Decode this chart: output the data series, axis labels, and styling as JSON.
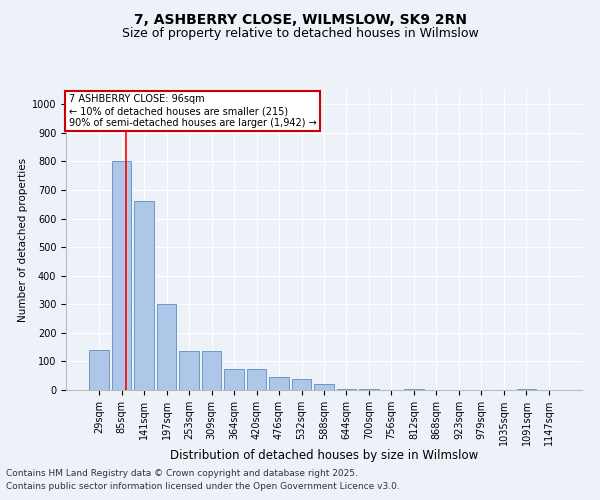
{
  "title": "7, ASHBERRY CLOSE, WILMSLOW, SK9 2RN",
  "subtitle": "Size of property relative to detached houses in Wilmslow",
  "xlabel": "Distribution of detached houses by size in Wilmslow",
  "ylabel": "Number of detached properties",
  "footer_line1": "Contains HM Land Registry data © Crown copyright and database right 2025.",
  "footer_line2": "Contains public sector information licensed under the Open Government Licence v3.0.",
  "bar_labels": [
    "29sqm",
    "85sqm",
    "141sqm",
    "197sqm",
    "253sqm",
    "309sqm",
    "364sqm",
    "420sqm",
    "476sqm",
    "532sqm",
    "588sqm",
    "644sqm",
    "700sqm",
    "756sqm",
    "812sqm",
    "868sqm",
    "923sqm",
    "979sqm",
    "1035sqm",
    "1091sqm",
    "1147sqm"
  ],
  "bar_values": [
    140,
    800,
    660,
    300,
    135,
    135,
    75,
    75,
    45,
    40,
    20,
    5,
    5,
    0,
    5,
    0,
    0,
    0,
    0,
    5,
    0
  ],
  "bar_color": "#aec6e8",
  "bar_edge_color": "#5a8fc2",
  "bg_color": "#edf2f9",
  "grid_color": "#ffffff",
  "annotation_text": "7 ASHBERRY CLOSE: 96sqm\n← 10% of detached houses are smaller (215)\n90% of semi-detached houses are larger (1,942) →",
  "annotation_box_color": "#cc0000",
  "ylim": [
    0,
    1050
  ],
  "yticks": [
    0,
    100,
    200,
    300,
    400,
    500,
    600,
    700,
    800,
    900,
    1000
  ],
  "title_fontsize": 10,
  "subtitle_fontsize": 9,
  "xlabel_fontsize": 8.5,
  "ylabel_fontsize": 7.5,
  "tick_fontsize": 7,
  "footer_fontsize": 6.5,
  "annotation_fontsize": 7
}
